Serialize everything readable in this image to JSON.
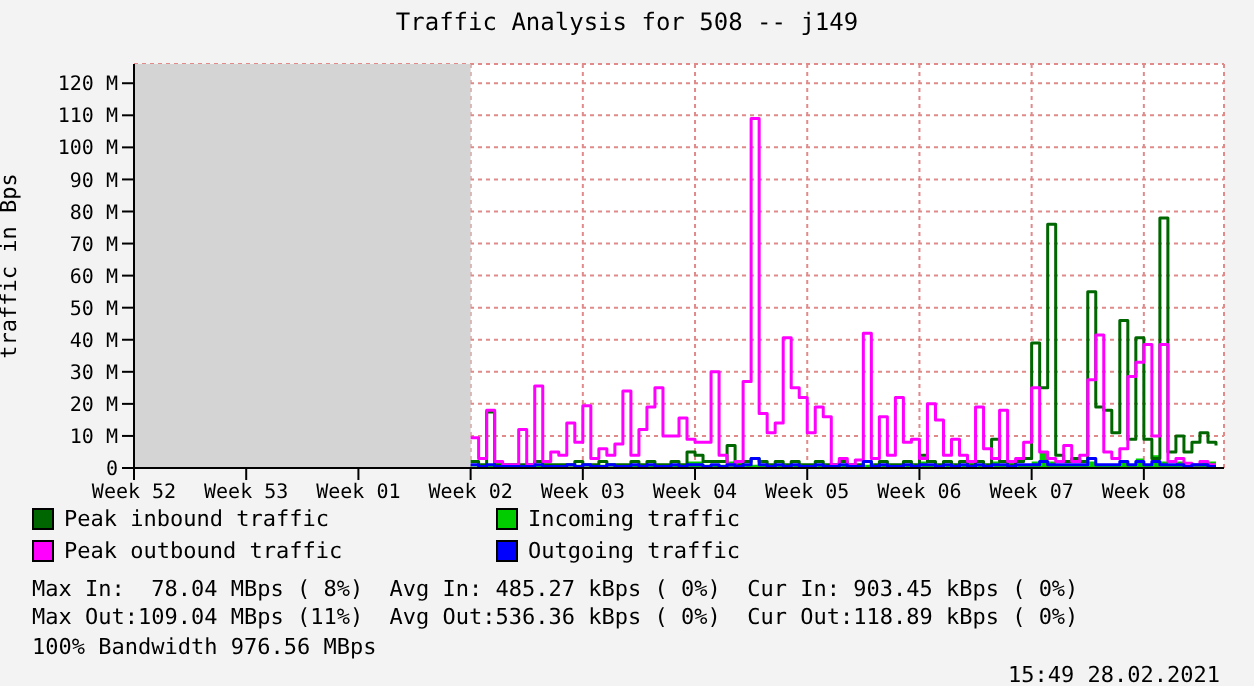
{
  "chart_data": {
    "type": "step",
    "title": "Traffic Analysis for 508 -- j149",
    "ylabel": "traffic in Bps",
    "ylim": [
      0,
      126
    ],
    "yticks": [
      0,
      {
        "value": 10,
        "label": "10 M"
      },
      {
        "value": 20,
        "label": "20 M"
      },
      {
        "value": 30,
        "label": "30 M"
      },
      {
        "value": 40,
        "label": "40 M"
      },
      {
        "value": 50,
        "label": "50 M"
      },
      {
        "value": 60,
        "label": "60 M"
      },
      {
        "value": 70,
        "label": "70 M"
      },
      {
        "value": 80,
        "label": "80 M"
      },
      {
        "value": 90,
        "label": "90 M"
      },
      {
        "value": 100,
        "label": "100 M"
      },
      {
        "value": 110,
        "label": "110 M"
      },
      {
        "value": 120,
        "label": "120 M"
      }
    ],
    "grid": true,
    "legend": "bottom",
    "bands": [
      {
        "axis": "x",
        "from": "Week 52",
        "to": "Week 02",
        "color": "#d4d4d4"
      }
    ],
    "categories": [
      "Week 52",
      null,
      null,
      null,
      null,
      null,
      null,
      null,
      null,
      null,
      null,
      null,
      null,
      null,
      "Week 53",
      null,
      null,
      null,
      null,
      null,
      null,
      null,
      null,
      null,
      null,
      null,
      null,
      null,
      "Week 01",
      null,
      null,
      null,
      null,
      null,
      null,
      null,
      null,
      null,
      null,
      null,
      null,
      null,
      "Week 02",
      null,
      null,
      null,
      null,
      null,
      null,
      null,
      null,
      null,
      null,
      null,
      null,
      null,
      "Week 03",
      null,
      null,
      null,
      null,
      null,
      null,
      null,
      null,
      null,
      null,
      null,
      null,
      null,
      "Week 04",
      null,
      null,
      null,
      null,
      null,
      null,
      null,
      null,
      null,
      null,
      null,
      null,
      null,
      "Week 05",
      null,
      null,
      null,
      null,
      null,
      null,
      null,
      null,
      null,
      null,
      null,
      null,
      null,
      "Week 06",
      null,
      null,
      null,
      null,
      null,
      null,
      null,
      null,
      null,
      null,
      null,
      null,
      null,
      "Week 07",
      null,
      null,
      null,
      null,
      null,
      null,
      null,
      null,
      null,
      null,
      null,
      null,
      null,
      "Week 08",
      null,
      null,
      null,
      null,
      null,
      null,
      null,
      null,
      null
    ],
    "series": [
      {
        "name": "Peak inbound traffic",
        "color": "#006600",
        "values": [
          null,
          null,
          null,
          null,
          null,
          null,
          null,
          null,
          null,
          null,
          null,
          null,
          null,
          null,
          null,
          null,
          null,
          null,
          null,
          null,
          null,
          null,
          null,
          null,
          null,
          null,
          null,
          null,
          null,
          null,
          null,
          null,
          null,
          null,
          null,
          null,
          null,
          null,
          null,
          null,
          null,
          null,
          2,
          1,
          17.5,
          1,
          1,
          1,
          1,
          1,
          2,
          1,
          1,
          1,
          1,
          2,
          1,
          1,
          2,
          1,
          1,
          1,
          2,
          1,
          2,
          1,
          1,
          2,
          1,
          5,
          4,
          2,
          2,
          2,
          7,
          1,
          2,
          3,
          2,
          1,
          2,
          1,
          2,
          1,
          1,
          2,
          1,
          1,
          2,
          1,
          1,
          2,
          1,
          2,
          1,
          1,
          2,
          1,
          4,
          2,
          1,
          2,
          1,
          2,
          1,
          2,
          1,
          9,
          2,
          1,
          2,
          3,
          39,
          25,
          76,
          4,
          2,
          3,
          2,
          55,
          19,
          18,
          11,
          46,
          9,
          40.6,
          9,
          3,
          78,
          5,
          10,
          5,
          8,
          11,
          8,
          7
        ]
      },
      {
        "name": "Incoming traffic",
        "type": "area",
        "color": "#00cc00",
        "values": [
          null,
          null,
          null,
          null,
          null,
          null,
          null,
          null,
          null,
          null,
          null,
          null,
          null,
          null,
          null,
          null,
          null,
          null,
          null,
          null,
          null,
          null,
          null,
          null,
          null,
          null,
          null,
          null,
          null,
          null,
          null,
          null,
          null,
          null,
          null,
          null,
          null,
          null,
          null,
          null,
          null,
          null,
          0.5,
          0.5,
          1,
          0.5,
          0.5,
          0.5,
          0.5,
          0.5,
          1,
          0.5,
          0.5,
          0.5,
          0.5,
          1,
          0.5,
          0.5,
          1,
          0.5,
          0.5,
          0.5,
          1,
          0.5,
          1,
          0.5,
          0.5,
          1,
          0.5,
          2,
          2,
          1,
          1,
          1,
          2,
          0.5,
          1,
          1,
          1,
          0.5,
          1,
          0.5,
          1,
          0.5,
          0.5,
          1,
          0.5,
          0.5,
          1,
          0.5,
          0.5,
          1,
          0.5,
          1,
          0.5,
          0.5,
          1,
          0.5,
          2,
          1,
          0.5,
          1,
          0.5,
          1,
          0.5,
          1,
          0.5,
          2,
          1,
          0.5,
          1,
          1,
          2,
          5,
          2,
          1,
          1,
          1,
          1,
          2,
          1,
          1,
          1,
          2,
          1,
          3,
          1,
          4,
          2,
          1,
          2,
          1,
          1,
          2,
          2,
          1
        ]
      },
      {
        "name": "Peak outbound traffic",
        "color": "#ff00ff",
        "values": [
          null,
          null,
          null,
          null,
          null,
          null,
          null,
          null,
          null,
          null,
          null,
          null,
          null,
          null,
          null,
          null,
          null,
          null,
          null,
          null,
          null,
          null,
          null,
          null,
          null,
          null,
          null,
          null,
          null,
          null,
          null,
          null,
          null,
          null,
          null,
          null,
          null,
          null,
          null,
          null,
          null,
          null,
          9.4,
          3,
          18,
          2,
          1,
          1,
          12,
          1,
          25.6,
          2,
          5,
          4,
          14,
          8,
          19.4,
          3,
          6,
          4,
          7.5,
          24,
          4,
          12,
          19,
          25,
          10,
          10,
          15.6,
          9,
          8,
          8,
          30,
          4,
          1,
          2,
          27,
          109,
          17,
          11,
          14,
          40.6,
          25,
          22,
          11,
          19,
          16,
          1,
          3,
          1,
          2.5,
          42,
          3,
          16,
          4,
          22,
          8,
          9,
          3,
          20,
          15,
          4,
          9,
          4,
          2,
          19,
          6,
          3,
          18,
          2,
          3,
          8,
          25,
          5,
          3,
          2,
          7,
          2,
          4,
          27.5,
          41.5,
          5,
          3,
          6,
          28.5,
          33,
          38.5,
          10,
          38.5,
          2,
          3,
          1.5,
          1,
          2,
          1,
          1
        ]
      },
      {
        "name": "Outgoing traffic",
        "color": "#0000ff",
        "values": [
          null,
          null,
          null,
          null,
          null,
          null,
          null,
          null,
          null,
          null,
          null,
          null,
          null,
          null,
          null,
          null,
          null,
          null,
          null,
          null,
          null,
          null,
          null,
          null,
          null,
          null,
          null,
          null,
          null,
          null,
          null,
          null,
          null,
          null,
          null,
          null,
          null,
          null,
          null,
          null,
          null,
          null,
          1,
          0.5,
          1,
          0.5,
          0.5,
          0.5,
          0.5,
          0.5,
          1,
          0.5,
          0.5,
          0.5,
          1,
          0.5,
          1,
          0.5,
          0.5,
          1,
          0.5,
          0.5,
          1,
          0.5,
          1,
          0.5,
          0.5,
          1,
          0.5,
          1,
          1,
          0.5,
          1,
          0.5,
          1,
          0.5,
          1,
          3,
          1,
          0.5,
          1,
          0.5,
          1,
          0.5,
          0.5,
          1,
          0.5,
          0.5,
          1,
          0.5,
          0.5,
          2,
          0.5,
          1,
          0.5,
          0.5,
          1,
          0.5,
          1,
          1,
          0.5,
          1,
          0.5,
          1,
          0.5,
          1,
          0.5,
          1,
          1,
          0.5,
          1,
          1,
          1,
          2,
          1,
          1,
          1,
          1,
          1,
          3,
          1,
          1,
          1,
          2,
          1,
          2,
          1,
          2,
          1,
          1,
          1,
          0.5,
          1,
          1,
          0.5,
          0.5
        ]
      }
    ],
    "annotations": [
      "Max In:  78.04 MBps ( 8%)  Avg In: 485.27 kBps ( 0%)  Cur In: 903.45 kBps ( 0%)",
      "Max Out:109.04 MBps (11%)  Avg Out:536.36 kBps ( 0%)  Cur Out:118.89 kBps ( 0%)",
      "100% Bandwidth 976.56 MBps",
      "15:49 28.02.2021"
    ]
  }
}
